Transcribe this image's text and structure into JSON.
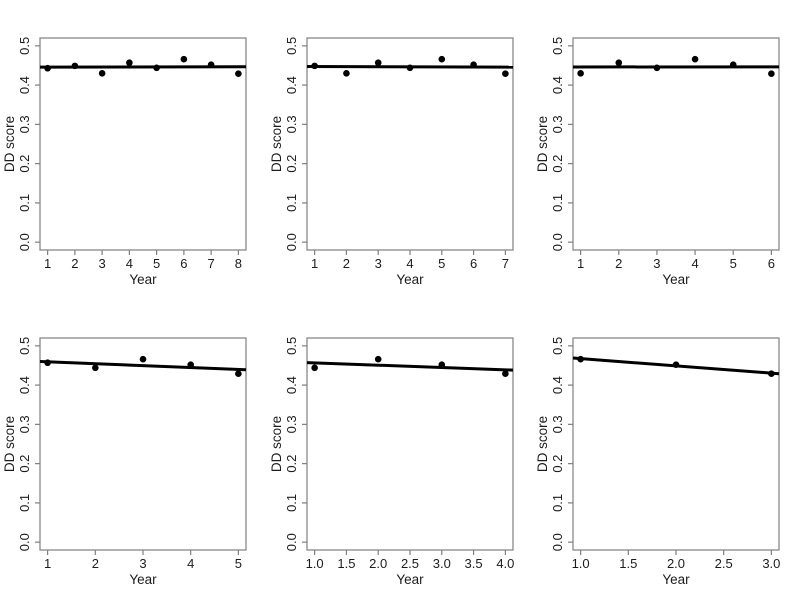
{
  "figure": {
    "background": "#ffffff",
    "point_color": "#000000",
    "trend_color": "#000000",
    "axis_color": "#7f7f7f",
    "text_color": "#1c1c1c"
  },
  "chart_data": [
    {
      "type": "scatter",
      "title": "",
      "xlabel": "Year",
      "ylabel": "DD score",
      "x": [
        1,
        2,
        3,
        4,
        5,
        6,
        7,
        8
      ],
      "y": [
        0.443,
        0.449,
        0.43,
        0.457,
        0.444,
        0.466,
        0.452,
        0.429
      ],
      "xticks": [
        1,
        2,
        3,
        4,
        5,
        6,
        7,
        8
      ],
      "xtick_labels": [
        "1",
        "2",
        "3",
        "4",
        "5",
        "6",
        "7",
        "8"
      ],
      "yticks": [
        0.0,
        0.1,
        0.2,
        0.3,
        0.4,
        0.5
      ],
      "ytick_labels": [
        "0.0",
        "0.1",
        "0.2",
        "0.3",
        "0.4",
        "0.5"
      ],
      "xlim": [
        0.72,
        8.28
      ],
      "ylim": [
        -0.02,
        0.52
      ],
      "trend": {
        "x": [
          0.72,
          8.28
        ],
        "y": [
          0.4457,
          0.4468
        ]
      },
      "grid": false,
      "legend": null
    },
    {
      "type": "scatter",
      "title": "",
      "xlabel": "Year",
      "ylabel": "DD score",
      "x": [
        1,
        2,
        3,
        4,
        5,
        6,
        7
      ],
      "y": [
        0.449,
        0.43,
        0.457,
        0.444,
        0.466,
        0.452,
        0.429
      ],
      "xticks": [
        1,
        2,
        3,
        4,
        5,
        6,
        7
      ],
      "xtick_labels": [
        "1",
        "2",
        "3",
        "4",
        "5",
        "6",
        "7"
      ],
      "yticks": [
        0.0,
        0.1,
        0.2,
        0.3,
        0.4,
        0.5
      ],
      "ytick_labels": [
        "0.0",
        "0.1",
        "0.2",
        "0.3",
        "0.4",
        "0.5"
      ],
      "xlim": [
        0.76,
        7.24
      ],
      "ylim": [
        -0.02,
        0.52
      ],
      "trend": {
        "x": [
          0.76,
          7.24
        ],
        "y": [
          0.4475,
          0.4459
        ]
      },
      "grid": false,
      "legend": null
    },
    {
      "type": "scatter",
      "title": "",
      "xlabel": "Year",
      "ylabel": "DD score",
      "x": [
        1,
        2,
        3,
        4,
        5,
        6
      ],
      "y": [
        0.43,
        0.457,
        0.444,
        0.466,
        0.452,
        0.429
      ],
      "xticks": [
        1,
        2,
        3,
        4,
        5,
        6
      ],
      "xtick_labels": [
        "1",
        "2",
        "3",
        "4",
        "5",
        "6"
      ],
      "yticks": [
        0.0,
        0.1,
        0.2,
        0.3,
        0.4,
        0.5
      ],
      "ytick_labels": [
        "0.0",
        "0.1",
        "0.2",
        "0.3",
        "0.4",
        "0.5"
      ],
      "xlim": [
        0.8,
        6.2
      ],
      "ylim": [
        -0.02,
        0.52
      ],
      "trend": {
        "x": [
          0.8,
          6.2
        ],
        "y": [
          0.4462,
          0.4465
        ]
      },
      "grid": false,
      "legend": null
    },
    {
      "type": "scatter",
      "title": "",
      "xlabel": "Year",
      "ylabel": "DD score",
      "x": [
        1,
        2,
        3,
        4,
        5
      ],
      "y": [
        0.457,
        0.444,
        0.466,
        0.452,
        0.429
      ],
      "xticks": [
        1,
        2,
        3,
        4,
        5
      ],
      "xtick_labels": [
        "1",
        "2",
        "3",
        "4",
        "5"
      ],
      "yticks": [
        0.0,
        0.1,
        0.2,
        0.3,
        0.4,
        0.5
      ],
      "ytick_labels": [
        "0.0",
        "0.1",
        "0.2",
        "0.3",
        "0.4",
        "0.5"
      ],
      "xlim": [
        0.84,
        5.16
      ],
      "ylim": [
        -0.02,
        0.52
      ],
      "trend": {
        "x": [
          0.84,
          5.16
        ],
        "y": [
          0.46,
          0.4392
        ]
      },
      "grid": false,
      "legend": null
    },
    {
      "type": "scatter",
      "title": "",
      "xlabel": "Year",
      "ylabel": "DD score",
      "x": [
        1,
        2,
        3,
        4
      ],
      "y": [
        0.444,
        0.466,
        0.452,
        0.429
      ],
      "xticks": [
        1,
        1.5,
        2,
        2.5,
        3,
        3.5,
        4
      ],
      "xtick_labels": [
        "1.0",
        "1.5",
        "2.0",
        "2.5",
        "3.0",
        "3.5",
        "4.0"
      ],
      "yticks": [
        0.0,
        0.1,
        0.2,
        0.3,
        0.4,
        0.5
      ],
      "ytick_labels": [
        "0.0",
        "0.1",
        "0.2",
        "0.3",
        "0.4",
        "0.5"
      ],
      "xlim": [
        0.88,
        4.12
      ],
      "ylim": [
        -0.02,
        0.52
      ],
      "trend": {
        "x": [
          0.88,
          4.12
        ],
        "y": [
          0.4573,
          0.4382
        ]
      },
      "grid": false,
      "legend": null
    },
    {
      "type": "scatter",
      "title": "",
      "xlabel": "Year",
      "ylabel": "DD score",
      "x": [
        1,
        2,
        3
      ],
      "y": [
        0.466,
        0.452,
        0.429
      ],
      "xticks": [
        1,
        1.5,
        2,
        2.5,
        3
      ],
      "xtick_labels": [
        "1.0",
        "1.5",
        "2.0",
        "2.5",
        "3.0"
      ],
      "yticks": [
        0.0,
        0.1,
        0.2,
        0.3,
        0.4,
        0.5
      ],
      "ytick_labels": [
        "0.0",
        "0.1",
        "0.2",
        "0.3",
        "0.4",
        "0.5"
      ],
      "xlim": [
        0.92,
        3.08
      ],
      "ylim": [
        -0.02,
        0.52
      ],
      "trend": {
        "x": [
          0.92,
          3.08
        ],
        "y": [
          0.469,
          0.429
        ]
      },
      "grid": false,
      "legend": null
    }
  ]
}
